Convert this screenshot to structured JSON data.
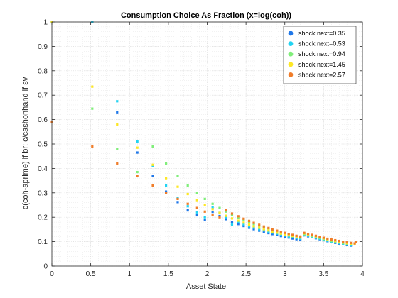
{
  "chart_data": {
    "type": "scatter",
    "title": "Consumption Choice As Fraction (x=log(coh))",
    "xlabel": "Asset State",
    "ylabel": "c(coh-aprime) if br; c/cashonhand if sv",
    "xlim": [
      0,
      4
    ],
    "ylim": [
      0,
      1
    ],
    "x_ticks": [
      "0",
      "0.5",
      "1",
      "1.5",
      "2",
      "2.5",
      "3",
      "3.5",
      "4"
    ],
    "y_ticks": [
      "0",
      "0.1",
      "0.2",
      "0.3",
      "0.4",
      "0.5",
      "0.6",
      "0.7",
      "0.8",
      "0.9",
      "1"
    ],
    "grid": true,
    "minor_grid": true,
    "legend_position": "top-right",
    "series": [
      {
        "name": "shock next=0.35",
        "color": "#1f77e8",
        "x": [
          0.0,
          0.52,
          0.84,
          1.1,
          1.3,
          1.47,
          1.62,
          1.75,
          1.87,
          1.97,
          2.07,
          2.16,
          2.24,
          2.32,
          2.4,
          2.47,
          2.54,
          2.6,
          2.67,
          2.73,
          2.79,
          2.84,
          2.9,
          2.95,
          3.0,
          3.05,
          3.1,
          3.15,
          3.2,
          3.25,
          3.3,
          3.35,
          3.4,
          3.45,
          3.5,
          3.55,
          3.6,
          3.65,
          3.7,
          3.75,
          3.8,
          3.85
        ],
        "y": [
          1.0,
          1.0,
          0.63,
          0.465,
          0.37,
          0.305,
          0.262,
          0.228,
          0.208,
          0.19,
          0.222,
          0.205,
          0.192,
          0.181,
          0.172,
          0.164,
          0.157,
          0.151,
          0.145,
          0.14,
          0.135,
          0.131,
          0.127,
          0.123,
          0.12,
          0.117,
          0.113,
          0.11,
          0.107,
          0.126,
          0.122,
          0.118,
          0.114,
          0.11,
          0.106,
          0.102,
          0.098,
          0.095,
          0.092,
          0.089,
          0.086,
          0.084
        ]
      },
      {
        "name": "shock next=0.53",
        "color": "#22d3f2",
        "x": [
          0.0,
          0.52,
          0.84,
          1.1,
          1.3,
          1.47,
          1.62,
          1.75,
          1.87,
          1.97,
          2.07,
          2.16,
          2.24,
          2.32,
          2.4,
          2.47,
          2.54,
          2.6,
          2.67,
          2.73,
          2.79,
          2.84,
          2.9,
          2.95,
          3.0,
          3.05,
          3.1,
          3.15,
          3.2,
          3.25,
          3.3,
          3.35,
          3.4,
          3.45,
          3.5,
          3.55,
          3.6,
          3.65,
          3.7,
          3.75,
          3.8,
          3.85
        ],
        "y": [
          1.0,
          1.0,
          0.675,
          0.51,
          0.41,
          0.33,
          0.28,
          0.245,
          0.22,
          0.2,
          0.24,
          0.218,
          0.2,
          0.17,
          0.18,
          0.171,
          0.163,
          0.157,
          0.151,
          0.146,
          0.141,
          0.137,
          0.133,
          0.129,
          0.125,
          0.121,
          0.118,
          0.115,
          0.112,
          0.128,
          0.124,
          0.12,
          0.116,
          0.112,
          0.108,
          0.104,
          0.1,
          0.097,
          0.094,
          0.091,
          0.088,
          0.086
        ]
      },
      {
        "name": "shock next=0.94",
        "color": "#80ee7a",
        "x": [
          0.0,
          0.52,
          0.84,
          1.1,
          1.3,
          1.47,
          1.62,
          1.75,
          1.87,
          1.97,
          2.07,
          2.16,
          2.24,
          2.32,
          2.4,
          2.47,
          2.54,
          2.6,
          2.67,
          2.73,
          2.79,
          2.84,
          2.9,
          2.95,
          3.0,
          3.05,
          3.1,
          3.15,
          3.2,
          3.25,
          3.3,
          3.35,
          3.4,
          3.45,
          3.5,
          3.55,
          3.6,
          3.65,
          3.7,
          3.75,
          3.8,
          3.85
        ],
        "y": [
          1.0,
          0.645,
          0.48,
          0.385,
          0.49,
          0.42,
          0.37,
          0.33,
          0.3,
          0.275,
          0.255,
          0.238,
          0.223,
          0.21,
          0.198,
          0.188,
          0.18,
          0.172,
          0.165,
          0.158,
          0.152,
          0.147,
          0.142,
          0.137,
          0.133,
          0.13,
          0.126,
          0.123,
          0.12,
          0.131,
          0.127,
          0.123,
          0.119,
          0.115,
          0.111,
          0.107,
          0.103,
          0.1,
          0.097,
          0.094,
          0.091,
          0.089
        ]
      },
      {
        "name": "shock next=1.45",
        "color": "#fde725",
        "x": [
          0.0,
          0.52,
          0.84,
          1.1,
          1.3,
          1.47,
          1.62,
          1.75,
          1.87,
          1.97,
          2.07,
          2.16,
          2.24,
          2.32,
          2.4,
          2.47,
          2.54,
          2.6,
          2.67,
          2.73,
          2.79,
          2.84,
          2.9,
          2.95,
          3.0,
          3.05,
          3.1,
          3.15,
          3.2,
          3.25,
          3.3,
          3.35,
          3.4,
          3.45,
          3.5,
          3.55,
          3.6,
          3.65,
          3.7,
          3.75,
          3.8,
          3.85,
          3.9
        ],
        "y": [
          1.0,
          0.735,
          0.58,
          0.485,
          0.415,
          0.36,
          0.325,
          0.295,
          0.27,
          0.25,
          0.233,
          0.218,
          0.206,
          0.195,
          0.186,
          0.178,
          0.17,
          0.163,
          0.157,
          0.151,
          0.146,
          0.141,
          0.137,
          0.133,
          0.129,
          0.126,
          0.123,
          0.12,
          0.117,
          0.134,
          0.13,
          0.126,
          0.122,
          0.118,
          0.114,
          0.11,
          0.106,
          0.103,
          0.1,
          0.097,
          0.094,
          0.091,
          0.09
        ]
      },
      {
        "name": "shock next=2.57",
        "color": "#f07d2a",
        "x": [
          0.0,
          0.52,
          0.84,
          1.1,
          1.3,
          1.47,
          1.62,
          1.75,
          1.87,
          1.97,
          2.07,
          2.16,
          2.24,
          2.32,
          2.4,
          2.47,
          2.54,
          2.6,
          2.67,
          2.73,
          2.79,
          2.84,
          2.9,
          2.95,
          3.0,
          3.05,
          3.1,
          3.15,
          3.2,
          3.25,
          3.3,
          3.35,
          3.4,
          3.45,
          3.5,
          3.55,
          3.6,
          3.65,
          3.7,
          3.75,
          3.8,
          3.85,
          3.9,
          3.92
        ],
        "y": [
          0.59,
          0.49,
          0.42,
          0.37,
          0.33,
          0.3,
          0.275,
          0.255,
          0.238,
          0.223,
          0.21,
          0.2,
          0.228,
          0.215,
          0.204,
          0.194,
          0.185,
          0.177,
          0.169,
          0.162,
          0.156,
          0.15,
          0.145,
          0.14,
          0.136,
          0.132,
          0.128,
          0.124,
          0.121,
          0.136,
          0.132,
          0.128,
          0.124,
          0.12,
          0.116,
          0.112,
          0.109,
          0.106,
          0.103,
          0.1,
          0.097,
          0.095,
          0.093,
          0.098
        ]
      }
    ]
  }
}
